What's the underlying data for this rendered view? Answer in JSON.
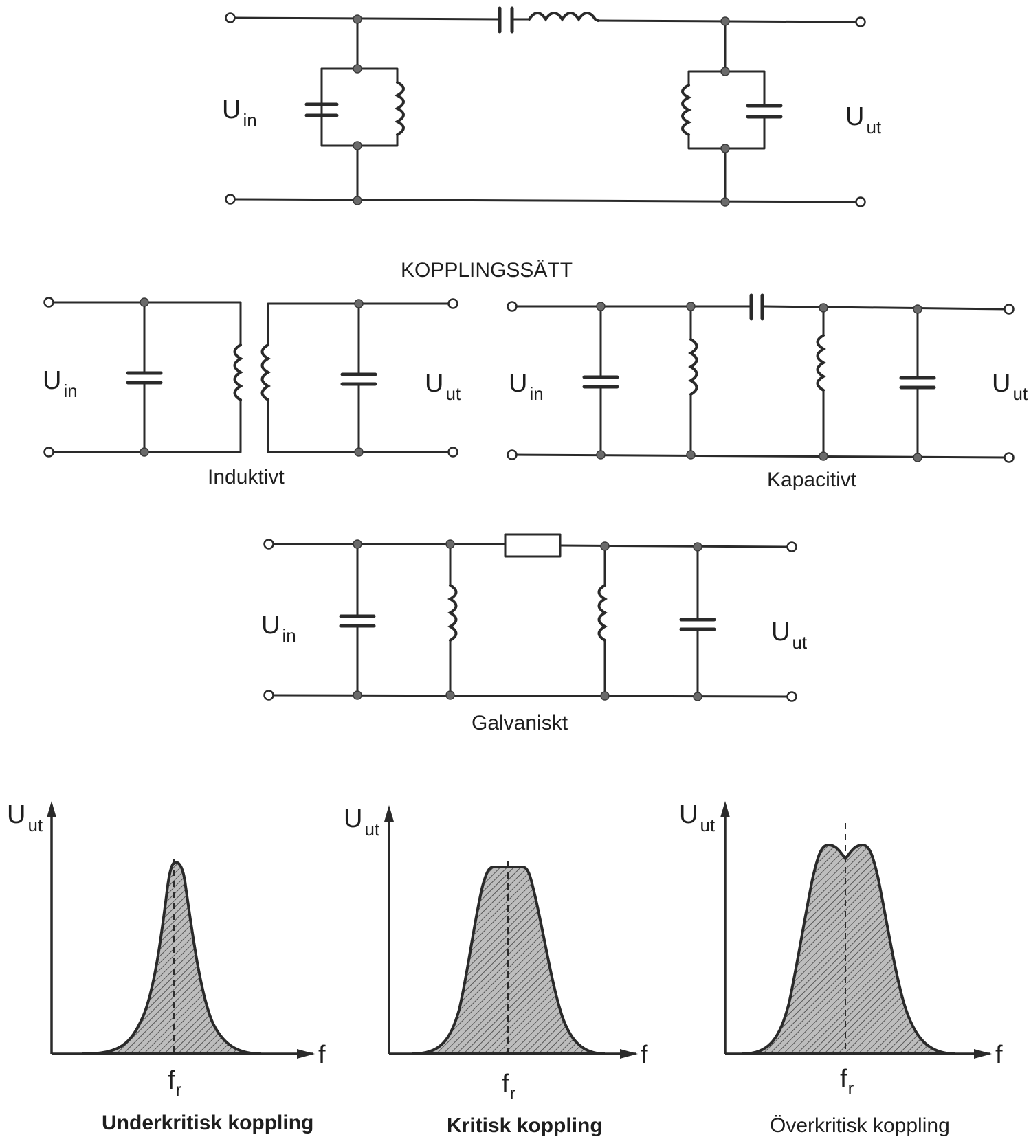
{
  "labels": {
    "u_main": "U",
    "in_sub": "in",
    "ut_sub": "ut",
    "f_main": "f",
    "r_sub": "r",
    "f_axis": "f"
  },
  "section_title": "KOPPLINGSSÄTT",
  "captions": {
    "induktivt": "Induktivt",
    "kapacitivt": "Kapacitivt",
    "galvaniskt": "Galvaniskt",
    "underkritisk": "Underkritisk koppling",
    "kritisk": "Kritisk koppling",
    "overkritisk": "Överkritisk koppling"
  },
  "chart_data": [
    {
      "type": "area",
      "title": "Underkritisk koppling",
      "xlabel": "f",
      "ylabel": "Uut",
      "x_marker": "fr",
      "shape": "single narrow peak at fr"
    },
    {
      "type": "area",
      "title": "Kritisk koppling",
      "xlabel": "f",
      "ylabel": "Uut",
      "x_marker": "fr",
      "shape": "flat-topped peak at fr"
    },
    {
      "type": "area",
      "title": "Överkritisk koppling",
      "xlabel": "f",
      "ylabel": "Uut",
      "x_marker": "fr",
      "shape": "double-humped peak around fr"
    }
  ]
}
